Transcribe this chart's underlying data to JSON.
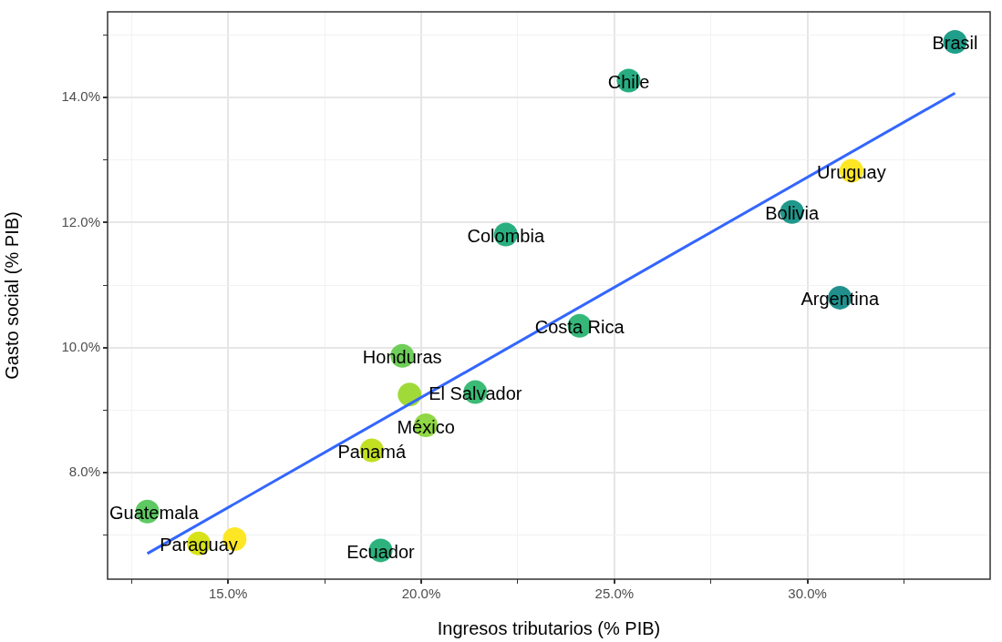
{
  "chart_data": {
    "type": "scatter",
    "xlabel": "Ingresos tributarios (% PIB)",
    "ylabel": "Gasto social (% PIB)",
    "xlim": [
      11.88,
      34.73
    ],
    "ylim": [
      6.3,
      15.37
    ],
    "xticks": [
      {
        "value": 12.5,
        "label": null
      },
      {
        "value": 15,
        "label": "15.0%"
      },
      {
        "value": 17.5,
        "label": null
      },
      {
        "value": 20,
        "label": "20.0%"
      },
      {
        "value": 22.5,
        "label": null
      },
      {
        "value": 25,
        "label": "25.0%"
      },
      {
        "value": 27.5,
        "label": null
      },
      {
        "value": 30,
        "label": "30.0%"
      },
      {
        "value": 32.5,
        "label": null
      }
    ],
    "yticks": [
      {
        "value": 7,
        "label": null
      },
      {
        "value": 8,
        "label": "8.0%"
      },
      {
        "value": 9,
        "label": null
      },
      {
        "value": 10,
        "label": "10.0%"
      },
      {
        "value": 11,
        "label": null
      },
      {
        "value": 12,
        "label": "12.0%"
      },
      {
        "value": 13,
        "label": null
      },
      {
        "value": 14,
        "label": "14.0%"
      },
      {
        "value": 15,
        "label": null
      }
    ],
    "grid": true,
    "legend": false,
    "marker": "circle",
    "series": [
      {
        "x": [
          33.82,
          25.37,
          31.14,
          29.6,
          22.19,
          30.84,
          24.1,
          19.51,
          21.4,
          19.7,
          20.12,
          18.72,
          12.91,
          14.24,
          15.17,
          18.95
        ],
        "values": [
          14.89,
          14.27,
          12.83,
          12.17,
          11.81,
          10.8,
          10.35,
          9.87,
          9.29,
          9.25,
          8.76,
          8.36,
          7.38,
          6.87,
          6.94,
          6.76
        ],
        "colors": [
          "#1f9e89",
          "#27ad81",
          "#fde725",
          "#1f988b",
          "#29af7f",
          "#21908d",
          "#35b779",
          "#6ece58",
          "#3bbb75",
          "#a0da39",
          "#8fd744",
          "#c2df23",
          "#5ec962",
          "#d8e219",
          "#fde725",
          "#2db27d"
        ]
      },
      {
        "type": "line",
        "marker": "none",
        "color": "#3366ff",
        "x": [
          12.91,
          33.82
        ],
        "values": [
          6.71,
          14.07
        ]
      }
    ],
    "annotations": [
      {
        "text": "Brasil",
        "x": 33.82,
        "y": 14.89
      },
      {
        "text": "Chile",
        "x": 25.37,
        "y": 14.27
      },
      {
        "text": "Uruguay",
        "x": 31.14,
        "y": 12.83
      },
      {
        "text": "Bolivia",
        "x": 29.6,
        "y": 12.17
      },
      {
        "text": "Colombia",
        "x": 22.19,
        "y": 11.81
      },
      {
        "text": "Argentina",
        "x": 30.84,
        "y": 10.8
      },
      {
        "text": "Costa Rica",
        "x": 24.1,
        "y": 10.35
      },
      {
        "text": "Honduras",
        "x": 19.51,
        "y": 9.87
      },
      {
        "text": "El Salvador",
        "x": 21.4,
        "y": 9.29
      },
      {
        "text": "México",
        "x": 20.12,
        "y": 8.76
      },
      {
        "text": "Panamá",
        "x": 18.72,
        "y": 8.36
      },
      {
        "text": "Guatemala",
        "x": 12.91,
        "y": 7.38
      },
      {
        "text": "Paraguay",
        "x": 14.24,
        "y": 6.87
      },
      {
        "text": "Ecuador",
        "x": 18.95,
        "y": 6.76
      }
    ]
  }
}
